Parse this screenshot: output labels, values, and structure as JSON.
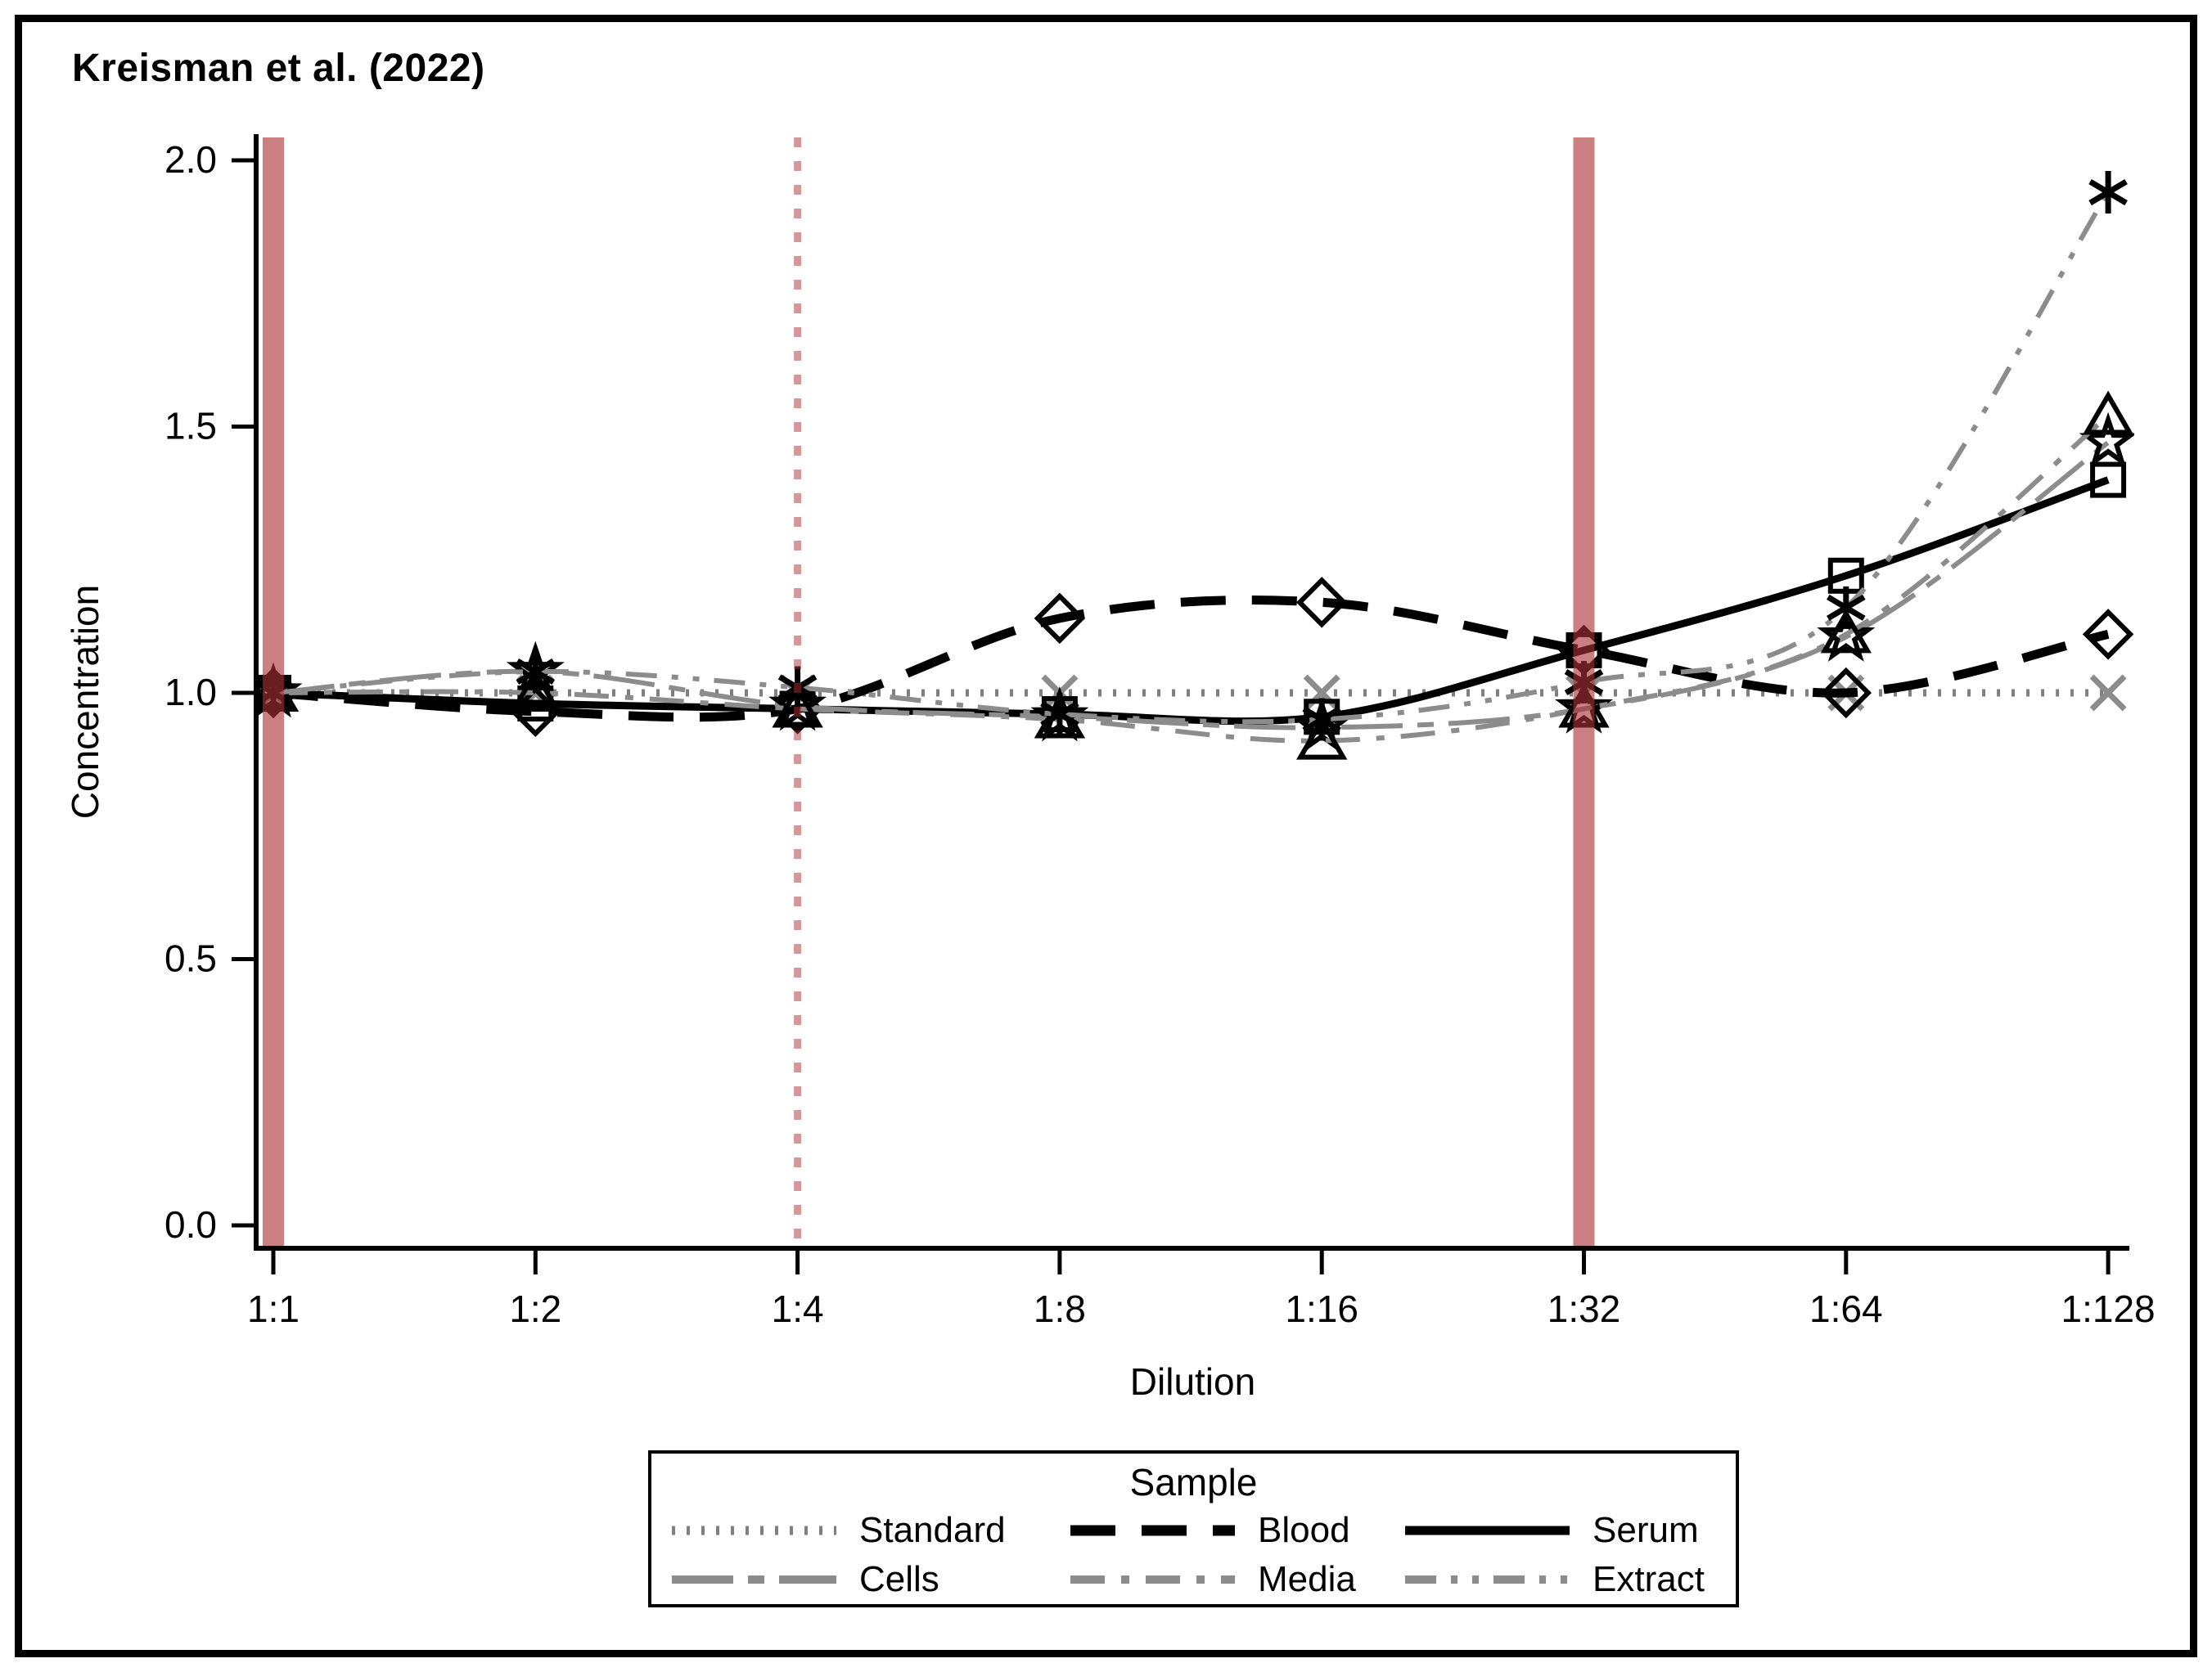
{
  "title": "Kreisman et al. (2022)",
  "chart_data": {
    "type": "line",
    "title": "Kreisman et al. (2022)",
    "xlabel": "Dilution",
    "ylabel": "Concentration",
    "categories": [
      "1:1",
      "1:2",
      "1:4",
      "1:8",
      "1:16",
      "1:32",
      "1:64",
      "1:128"
    ],
    "y_ticks": [
      "0.0",
      "0.5",
      "1.0",
      "1.5",
      "2.0"
    ],
    "ylim": [
      -0.05,
      2.05
    ],
    "grid": "off",
    "legend_position": "bottom",
    "series": [
      {
        "name": "Standard",
        "marker": "x",
        "line_color": "#7f7f7f",
        "marker_color": "#8c8c8c",
        "dash": "4 14",
        "width": 9,
        "values": [
          1.0,
          1.0,
          1.0,
          1.0,
          1.0,
          1.0,
          1.0,
          1.0
        ]
      },
      {
        "name": "Blood",
        "marker": "diamond",
        "line_color": "#000000",
        "marker_color": "#000000",
        "dash": "55 32",
        "width": 11,
        "values": [
          1.0,
          0.965,
          0.97,
          1.14,
          1.17,
          1.08,
          1.0,
          1.11
        ]
      },
      {
        "name": "Serum",
        "marker": "square",
        "line_color": "#000000",
        "marker_color": "#000000",
        "dash": "",
        "width": 9,
        "values": [
          1.0,
          0.98,
          0.97,
          0.96,
          0.955,
          1.08,
          1.22,
          1.4
        ]
      },
      {
        "name": "Cells",
        "marker": "star",
        "line_color": "#8c8c8c",
        "marker_color": "#000000",
        "dash": "75 18 20 18",
        "width": 6,
        "values": [
          1.0,
          1.04,
          0.975,
          0.955,
          0.935,
          0.97,
          1.105,
          1.47
        ]
      },
      {
        "name": "Media",
        "marker": "triangle",
        "line_color": "#8c8c8c",
        "marker_color": "#000000",
        "dash": "42 20 10 20",
        "width": 6,
        "values": [
          1.0,
          1.0,
          0.97,
          0.95,
          0.91,
          0.97,
          1.11,
          1.52
        ]
      },
      {
        "name": "Extract",
        "marker": "asterisk",
        "line_color": "#8c8c8c",
        "marker_color": "#000000",
        "dash": "38 18 8 18 8 18",
        "width": 6,
        "values": [
          1.0,
          1.04,
          1.01,
          0.96,
          0.95,
          1.02,
          1.16,
          1.94
        ]
      }
    ],
    "reference_lines": [
      {
        "category": "1:1",
        "style": "band",
        "color": "rgba(170,50,52,0.62)",
        "band_width": 26
      },
      {
        "category": "1:4",
        "style": "dotted",
        "color": "rgba(170,50,52,0.50)",
        "band_width": 9
      },
      {
        "category": "1:32",
        "style": "band",
        "color": "rgba(170,50,52,0.62)",
        "band_width": 26
      }
    ]
  },
  "legend": {
    "title": "Sample",
    "rows": [
      [
        "Standard",
        "Blood",
        "Serum"
      ],
      [
        "Cells",
        "Media",
        "Extract"
      ]
    ]
  }
}
